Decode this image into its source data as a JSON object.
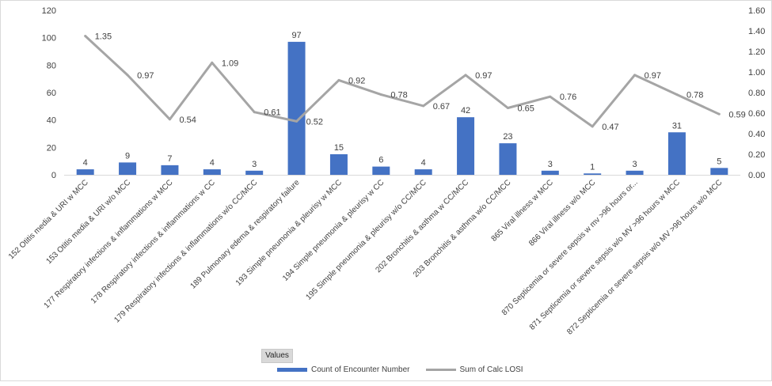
{
  "chart_data": {
    "type": "bar",
    "categories": [
      "152 Otitis media & URI w MCC",
      "153 Otitis media & URI w/o MCC",
      "177 Respiratory infections & inflammations w MCC",
      "178 Respiratory infections & inflammations w CC",
      "179 Respiratory infections & inflammations w/o CC/MCC",
      "189 Pulmonary edema & respiratory failure",
      "193 Simple pneumonia & pleurisy w MCC",
      "194 Simple pneumonia & pleurisy w CC",
      "195 Simple pneumonia & pleurisy w/o CC/MCC",
      "202 Bronchitis & asthma w CC/MCC",
      "203 Bronchitis & asthma w/o CC/MCC",
      "865 Viral illness w MCC",
      "866 Viral illness w/o MCC",
      "870 Septicemia or severe sepsis w mv >96 hours or...",
      "871 Septicemia or severe sepsis w/o MV >96 hours w MCC",
      "872 Septicemia or severe sepsis w/o MV >96 hours w/o MCC"
    ],
    "series": [
      {
        "name": "Count of Encounter Number",
        "type": "bar",
        "axis": "left",
        "color": "#4472c4",
        "values": [
          4,
          9,
          7,
          4,
          3,
          97,
          15,
          6,
          4,
          42,
          23,
          3,
          1,
          3,
          31,
          5
        ],
        "labels": [
          "4",
          "9",
          "7",
          "4",
          "3",
          "97",
          "15",
          "6",
          "4",
          "42",
          "23",
          "3",
          "1",
          "3",
          "31",
          "5"
        ]
      },
      {
        "name": "Sum of Calc LOSI",
        "type": "line",
        "axis": "right",
        "color": "#a5a5a5",
        "values": [
          1.35,
          0.97,
          0.54,
          1.09,
          0.61,
          0.52,
          0.92,
          0.78,
          0.67,
          0.97,
          0.65,
          0.76,
          0.47,
          0.97,
          0.78,
          0.59
        ],
        "labels": [
          "1.35",
          "0.97",
          "0.54",
          "1.09",
          "0.61",
          "0.52",
          "0.92",
          "0.78",
          "0.67",
          "0.97",
          "0.65",
          "0.76",
          "0.47",
          "0.97",
          "0.78",
          "0.59"
        ]
      }
    ],
    "y_left": {
      "min": 0,
      "max": 120,
      "ticks": [
        "0",
        "20",
        "40",
        "60",
        "80",
        "100",
        "120"
      ]
    },
    "y_right": {
      "min": 0,
      "max": 1.6,
      "ticks": [
        "0.00",
        "0.20",
        "0.40",
        "0.60",
        "0.80",
        "1.00",
        "1.20",
        "1.40",
        "1.60"
      ]
    },
    "grid": false,
    "legend_position": "bottom"
  },
  "pivot": {
    "values_button": "Values"
  },
  "legend": {
    "bar_label": "Count of Encounter Number",
    "line_label": "Sum of Calc LOSI"
  }
}
